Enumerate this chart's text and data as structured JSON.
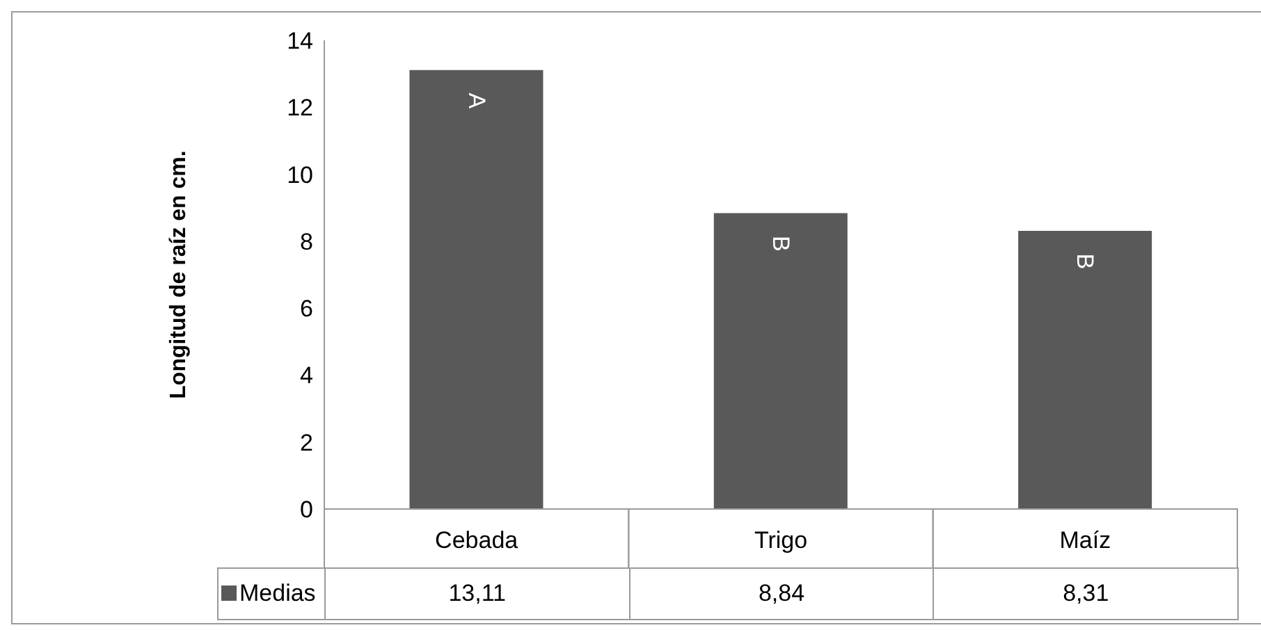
{
  "chart_data": {
    "type": "bar",
    "ylabel": "Longitud de raíz en cm.",
    "categories": [
      "Cebada",
      "Trigo",
      "Maíz"
    ],
    "series": [
      {
        "name": "Medias",
        "color": "#595959",
        "values": [
          13.11,
          8.84,
          8.31
        ],
        "value_labels": [
          "13,11",
          "8,84",
          "8,31"
        ]
      }
    ],
    "ylim": [
      0,
      14
    ],
    "yticks": [
      0,
      2,
      4,
      6,
      8,
      10,
      12,
      14
    ],
    "grid": false,
    "legend": "bottom",
    "annotations": [
      {
        "text": "A",
        "x": "Cebada",
        "y": 13.11
      },
      {
        "text": "B",
        "x": "Trigo",
        "y": 8.84
      },
      {
        "text": "B",
        "x": "Maíz",
        "y": 8.31
      }
    ]
  }
}
